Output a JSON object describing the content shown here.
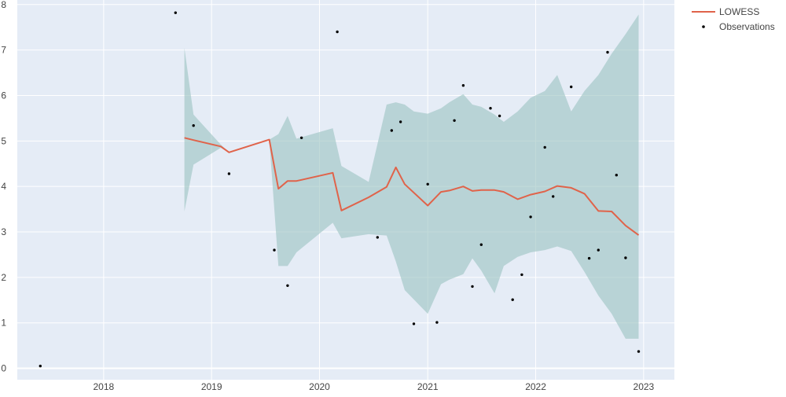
{
  "chart_data": {
    "type": "line",
    "title": "",
    "xlabel": "",
    "ylabel": "",
    "x_axis": {
      "type": "date",
      "range": [
        "2017-03-15",
        "2023-04-15"
      ],
      "ticks": [
        "2018",
        "2019",
        "2020",
        "2021",
        "2022",
        "2023"
      ]
    },
    "y_axis": {
      "range": [
        -0.25,
        8.1
      ],
      "ticks": [
        0,
        1,
        2,
        3,
        4,
        5,
        6,
        7,
        8
      ]
    },
    "grid": true,
    "legend_position": "top-right",
    "colors": {
      "plot_background": "#e5ecf6",
      "grid": "#ffffff",
      "lowess": "#e0634a",
      "band": "#9cc4c2",
      "observations": "#000000"
    },
    "series": [
      {
        "name": "LOWESS",
        "kind": "line",
        "points": [
          [
            "2018-10-01",
            5.07
          ],
          [
            "2018-11-01",
            5.02
          ],
          [
            "2019-02-01",
            4.88
          ],
          [
            "2019-03-01",
            4.75
          ],
          [
            "2019-07-15",
            5.03
          ],
          [
            "2019-08-15",
            3.95
          ],
          [
            "2019-09-15",
            4.12
          ],
          [
            "2019-10-15",
            4.12
          ],
          [
            "2020-02-15",
            4.3
          ],
          [
            "2020-03-15",
            3.47
          ],
          [
            "2020-06-15",
            3.76
          ],
          [
            "2020-08-15",
            3.99
          ],
          [
            "2020-09-15",
            4.42
          ],
          [
            "2020-10-15",
            4.05
          ],
          [
            "2021-01-01",
            3.58
          ],
          [
            "2021-02-15",
            3.88
          ],
          [
            "2021-03-15",
            3.91
          ],
          [
            "2021-05-01",
            4.0
          ],
          [
            "2021-06-01",
            3.9
          ],
          [
            "2021-07-01",
            3.92
          ],
          [
            "2021-08-15",
            3.92
          ],
          [
            "2021-09-15",
            3.88
          ],
          [
            "2021-11-01",
            3.72
          ],
          [
            "2021-12-15",
            3.82
          ],
          [
            "2022-02-01",
            3.89
          ],
          [
            "2022-03-15",
            4.01
          ],
          [
            "2022-05-01",
            3.97
          ],
          [
            "2022-06-15",
            3.84
          ],
          [
            "2022-08-01",
            3.46
          ],
          [
            "2022-09-15",
            3.45
          ],
          [
            "2022-11-01",
            3.14
          ],
          [
            "2022-12-15",
            2.93
          ]
        ]
      },
      {
        "name": "Observations",
        "kind": "markers",
        "points": [
          [
            "2017-06-01",
            0.05
          ],
          [
            "2018-09-01",
            7.82
          ],
          [
            "2018-11-01",
            5.34
          ],
          [
            "2019-03-01",
            4.28
          ],
          [
            "2019-08-01",
            2.6
          ],
          [
            "2019-09-15",
            1.82
          ],
          [
            "2019-11-01",
            5.07
          ],
          [
            "2020-03-01",
            7.4
          ],
          [
            "2020-07-15",
            2.88
          ],
          [
            "2020-09-01",
            5.23
          ],
          [
            "2020-10-01",
            5.42
          ],
          [
            "2020-11-15",
            0.98
          ],
          [
            "2021-01-01",
            4.05
          ],
          [
            "2021-02-01",
            1.01
          ],
          [
            "2021-04-01",
            5.45
          ],
          [
            "2021-05-01",
            6.22
          ],
          [
            "2021-06-01",
            1.8
          ],
          [
            "2021-07-01",
            2.72
          ],
          [
            "2021-08-01",
            5.72
          ],
          [
            "2021-09-01",
            5.55
          ],
          [
            "2021-10-15",
            1.51
          ],
          [
            "2021-11-15",
            2.06
          ],
          [
            "2021-12-15",
            3.33
          ],
          [
            "2022-02-01",
            4.86
          ],
          [
            "2022-03-01",
            3.78
          ],
          [
            "2022-05-01",
            6.19
          ],
          [
            "2022-07-01",
            2.42
          ],
          [
            "2022-08-01",
            2.6
          ],
          [
            "2022-09-01",
            6.95
          ],
          [
            "2022-10-01",
            4.25
          ],
          [
            "2022-11-01",
            2.43
          ],
          [
            "2022-12-15",
            0.37
          ]
        ]
      }
    ],
    "band": {
      "upper": [
        [
          "2018-10-01",
          7.05
        ],
        [
          "2018-11-01",
          5.58
        ],
        [
          "2019-02-01",
          4.92
        ],
        [
          "2019-03-01",
          4.75
        ],
        [
          "2019-07-15",
          5.03
        ],
        [
          "2019-08-15",
          5.15
        ],
        [
          "2019-09-15",
          5.55
        ],
        [
          "2019-10-15",
          5.05
        ],
        [
          "2020-02-15",
          5.28
        ],
        [
          "2020-03-15",
          4.45
        ],
        [
          "2020-06-15",
          4.1
        ],
        [
          "2020-08-15",
          5.8
        ],
        [
          "2020-09-15",
          5.85
        ],
        [
          "2020-10-15",
          5.8
        ],
        [
          "2020-11-15",
          5.65
        ],
        [
          "2021-01-01",
          5.6
        ],
        [
          "2021-02-15",
          5.72
        ],
        [
          "2021-03-15",
          5.85
        ],
        [
          "2021-05-01",
          6.03
        ],
        [
          "2021-06-01",
          5.8
        ],
        [
          "2021-07-01",
          5.75
        ],
        [
          "2021-08-15",
          5.58
        ],
        [
          "2021-09-15",
          5.42
        ],
        [
          "2021-11-01",
          5.65
        ],
        [
          "2021-12-15",
          5.95
        ],
        [
          "2022-02-01",
          6.1
        ],
        [
          "2022-03-15",
          6.45
        ],
        [
          "2022-05-01",
          5.65
        ],
        [
          "2022-06-15",
          6.1
        ],
        [
          "2022-08-01",
          6.45
        ],
        [
          "2022-09-15",
          6.92
        ],
        [
          "2022-11-01",
          7.35
        ],
        [
          "2022-12-15",
          7.78
        ]
      ],
      "lower": [
        [
          "2018-10-01",
          3.45
        ],
        [
          "2018-11-01",
          4.48
        ],
        [
          "2019-02-01",
          4.85
        ],
        [
          "2019-03-01",
          4.75
        ],
        [
          "2019-07-15",
          5.03
        ],
        [
          "2019-08-15",
          2.25
        ],
        [
          "2019-09-15",
          2.25
        ],
        [
          "2019-10-15",
          2.55
        ],
        [
          "2020-02-15",
          3.2
        ],
        [
          "2020-03-15",
          2.86
        ],
        [
          "2020-06-15",
          2.95
        ],
        [
          "2020-08-15",
          2.92
        ],
        [
          "2020-09-15",
          2.35
        ],
        [
          "2020-10-15",
          1.72
        ],
        [
          "2021-01-01",
          1.2
        ],
        [
          "2021-02-15",
          1.85
        ],
        [
          "2021-03-15",
          1.95
        ],
        [
          "2021-05-01",
          2.07
        ],
        [
          "2021-06-01",
          2.42
        ],
        [
          "2021-07-01",
          2.15
        ],
        [
          "2021-08-15",
          1.65
        ],
        [
          "2021-09-15",
          2.25
        ],
        [
          "2021-11-01",
          2.45
        ],
        [
          "2021-12-15",
          2.55
        ],
        [
          "2022-02-01",
          2.6
        ],
        [
          "2022-03-15",
          2.68
        ],
        [
          "2022-05-01",
          2.58
        ],
        [
          "2022-06-15",
          2.12
        ],
        [
          "2022-08-01",
          1.6
        ],
        [
          "2022-09-15",
          1.2
        ],
        [
          "2022-11-01",
          0.65
        ],
        [
          "2022-12-15",
          0.65
        ]
      ]
    }
  }
}
